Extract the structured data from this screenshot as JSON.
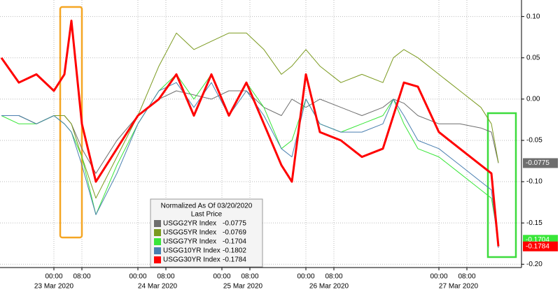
{
  "chart_data": {
    "type": "line",
    "legend_title": "Normalized As Of 03/20/2020",
    "legend_subtitle": "Last Price",
    "x": [
      -15,
      -10,
      -5,
      0,
      3,
      5,
      8,
      12,
      18,
      24,
      30,
      35,
      40,
      45,
      50,
      55,
      60,
      65,
      68,
      72,
      76,
      82,
      88,
      94,
      97,
      100,
      104,
      110,
      116,
      122,
      125,
      127
    ],
    "xlim": [
      -15.4,
      133.6
    ],
    "xticks": [
      {
        "value": 0,
        "label": "00:00"
      },
      {
        "value": 8,
        "label": "08:00"
      },
      {
        "value": 24,
        "label": "00:00"
      },
      {
        "value": 32,
        "label": "08:00"
      },
      {
        "value": 48,
        "label": "00:00"
      },
      {
        "value": 56,
        "label": "08:00"
      },
      {
        "value": 72,
        "label": "00:00"
      },
      {
        "value": 80,
        "label": "08:00"
      },
      {
        "value": 110,
        "label": "00:00"
      },
      {
        "value": 118,
        "label": "08:00"
      }
    ],
    "xdates": [
      {
        "value": 0,
        "label": "23 Mar 2020"
      },
      {
        "value": 29.6,
        "label": "24 Mar 2020"
      },
      {
        "value": 54,
        "label": "25 Mar 2020"
      },
      {
        "value": 78.6,
        "label": "26 Mar 2020"
      },
      {
        "value": 115.6,
        "label": "27 Mar 2020"
      }
    ],
    "ylim": [
      -0.204,
      0.12
    ],
    "yticks": [
      {
        "value": 0.1,
        "label": "0.10"
      },
      {
        "value": 0.05,
        "label": "0.05"
      },
      {
        "value": 0,
        "label": "0.00"
      },
      {
        "value": -0.05,
        "label": "-0.05"
      },
      {
        "value": -0.1,
        "label": "-0.10"
      },
      {
        "value": -0.15,
        "label": "-0.15"
      },
      {
        "value": -0.2,
        "label": "-0.20"
      }
    ],
    "grid": true,
    "series": [
      {
        "name": "USGG2YR Index",
        "color": "#6e6e6e",
        "last": -0.0775,
        "end_label": true,
        "width": 1,
        "values": [
          -0.02,
          -0.02,
          -0.03,
          -0.02,
          -0.02,
          -0.03,
          -0.06,
          -0.09,
          -0.05,
          -0.02,
          0.0,
          0.01,
          0.005,
          0.0,
          0.01,
          0.01,
          -0.01,
          -0.02,
          0.0,
          -0.01,
          0.0,
          -0.01,
          -0.02,
          -0.01,
          0.0,
          -0.005,
          -0.02,
          -0.03,
          -0.03,
          -0.035,
          -0.04,
          -0.0775
        ]
      },
      {
        "name": "USGG5YR Index",
        "color": "#7b9a1f",
        "last": -0.0769,
        "end_label": false,
        "width": 1,
        "values": [
          -0.02,
          -0.02,
          -0.03,
          -0.02,
          -0.02,
          -0.03,
          -0.07,
          -0.12,
          -0.07,
          -0.02,
          0.04,
          0.08,
          0.06,
          0.07,
          0.08,
          0.08,
          0.06,
          0.03,
          0.04,
          0.06,
          0.04,
          0.02,
          0.03,
          0.02,
          0.05,
          0.06,
          0.05,
          0.03,
          0.01,
          -0.01,
          -0.03,
          -0.0769
        ]
      },
      {
        "name": "USGG7YR Index",
        "color": "#39e639",
        "last": -0.1704,
        "end_label": true,
        "width": 1,
        "values": [
          -0.02,
          -0.03,
          -0.03,
          -0.02,
          -0.03,
          -0.04,
          -0.07,
          -0.14,
          -0.08,
          -0.03,
          0.01,
          0.03,
          0.0,
          0.03,
          -0.02,
          0.02,
          -0.01,
          -0.06,
          -0.05,
          0.0,
          -0.03,
          -0.04,
          -0.03,
          -0.02,
          0.0,
          -0.03,
          -0.06,
          -0.07,
          -0.09,
          -0.11,
          -0.12,
          -0.1704
        ]
      },
      {
        "name": "USGG10YR Index",
        "color": "#4a7fb0",
        "last": -0.1802,
        "end_label": false,
        "width": 1,
        "values": [
          -0.02,
          -0.02,
          -0.03,
          -0.02,
          -0.03,
          -0.04,
          -0.08,
          -0.14,
          -0.09,
          -0.03,
          0.01,
          0.02,
          -0.01,
          0.02,
          -0.02,
          0.01,
          -0.02,
          -0.06,
          -0.07,
          0.0,
          -0.03,
          -0.04,
          -0.04,
          -0.03,
          0.0,
          -0.02,
          -0.05,
          -0.06,
          -0.08,
          -0.1,
          -0.11,
          -0.1802
        ]
      },
      {
        "name": "USGG30YR Index",
        "color": "#ff0000",
        "last": -0.1784,
        "end_label": true,
        "width": 3,
        "values": [
          0.05,
          0.02,
          0.03,
          0.01,
          0.03,
          0.095,
          -0.03,
          -0.1,
          -0.06,
          -0.02,
          0.0,
          0.03,
          -0.02,
          0.03,
          -0.02,
          0.02,
          -0.03,
          -0.08,
          -0.1,
          0.03,
          -0.04,
          -0.05,
          -0.07,
          -0.06,
          -0.02,
          0.02,
          0.015,
          -0.04,
          -0.06,
          -0.08,
          -0.09,
          -0.1784
        ]
      }
    ]
  }
}
